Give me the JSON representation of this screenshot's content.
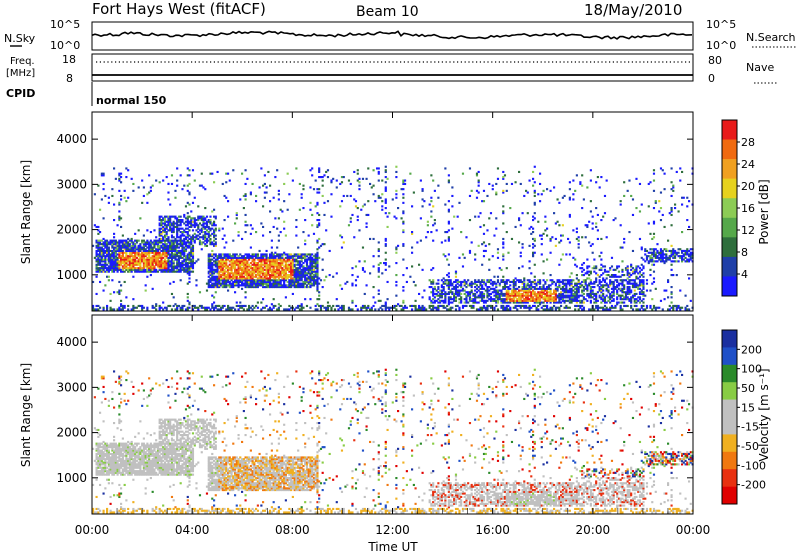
{
  "header": {
    "station": "Fort Hays West (fitACF)",
    "beam": "Beam 10",
    "date": "18/May/2010"
  },
  "noise_panel": {
    "left_label": "N.Sky",
    "left_ticks": [
      "10^5",
      "10^0"
    ],
    "right_ticks": [
      "10^5",
      "10^0"
    ],
    "right_label": "N.Search"
  },
  "freq_panel": {
    "left_label_1": "Freq.",
    "left_label_2": "[MHz]",
    "left_ticks": [
      "18",
      "8"
    ],
    "right_ticks": [
      "80",
      "0"
    ],
    "right_label": "Nave"
  },
  "cpid": {
    "label": "CPID",
    "mode": "normal 150"
  },
  "colors": {
    "power_scale": [
      "#1a1aff",
      "#1f3fa8",
      "#2e6e3c",
      "#55a84a",
      "#8ccc55",
      "#e6d21e",
      "#f0a020",
      "#f06a10",
      "#e81a1a"
    ],
    "velocity_scale": [
      "#1a2fa0",
      "#1f50c8",
      "#2a8a2a",
      "#88cc44",
      "#c0c0c0",
      "#c0c0c0",
      "#f0b020",
      "#f07810",
      "#e83010",
      "#e00000"
    ]
  },
  "chart_data": [
    {
      "type": "heatmap",
      "name": "power",
      "ylabel": "Slant Range [km]",
      "yticks": [
        "1000",
        "2000",
        "3000",
        "4000"
      ],
      "ylim": [
        200,
        4600
      ],
      "colorbar_label": "Power [dB]",
      "colorbar_ticks": [
        "4",
        "8",
        "12",
        "16",
        "20",
        "24",
        "28"
      ],
      "colorbar_range": [
        0,
        32
      ]
    },
    {
      "type": "heatmap",
      "name": "velocity",
      "ylabel": "Slant Range [km]",
      "yticks": [
        "1000",
        "2000",
        "3000",
        "4000"
      ],
      "ylim": [
        200,
        4600
      ],
      "colorbar_label": "Velocity [m s⁻¹]",
      "colorbar_ticks": [
        "200",
        "100",
        "50",
        "15",
        "-15",
        "-50",
        "-100",
        "-200"
      ],
      "xlabel": "Time UT",
      "xticks": [
        "00:00",
        "04:00",
        "08:00",
        "12:00",
        "16:00",
        "20:00",
        "00:00"
      ]
    }
  ]
}
